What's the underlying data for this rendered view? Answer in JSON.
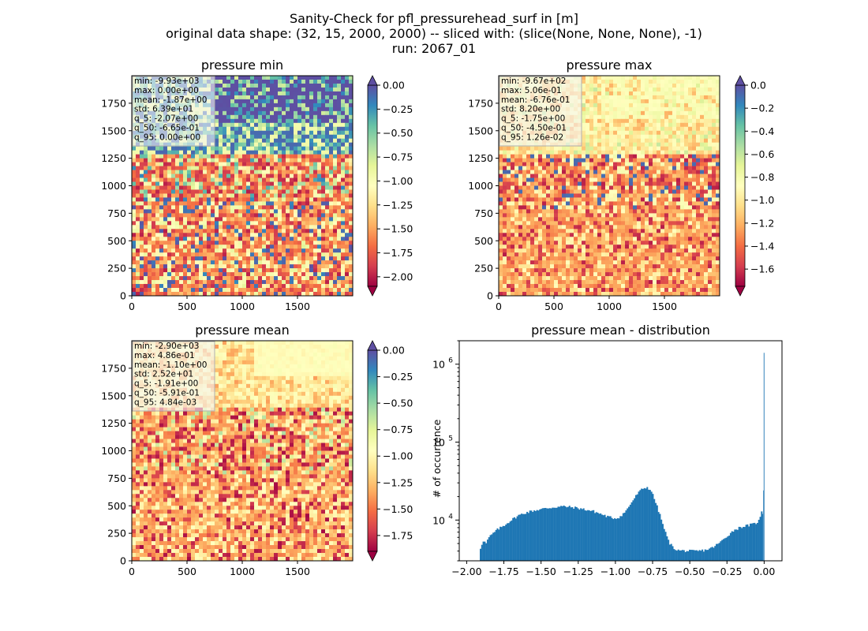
{
  "figure": {
    "title_lines": [
      "Sanity-Check for pfl_pressurehead_surf in [m]",
      "original data shape: (32, 15, 2000, 2000) -- sliced with: (slice(None, None, None), -1)",
      "run: 2067_01"
    ]
  },
  "colormap": {
    "name": "Spectral",
    "stops": [
      "#9e0142",
      "#d53e4f",
      "#f46d43",
      "#fdae61",
      "#fee08b",
      "#ffffbf",
      "#e6f598",
      "#abdda4",
      "#66c2a5",
      "#3288bd",
      "#5e4fa2"
    ]
  },
  "chart_data": [
    {
      "type": "heatmap",
      "title": "pressure min",
      "xlim": [
        0,
        2000
      ],
      "ylim": [
        0,
        2000
      ],
      "xticks": [
        0,
        500,
        1000,
        1500
      ],
      "yticks": [
        0,
        250,
        500,
        750,
        1000,
        1250,
        1500,
        1750
      ],
      "colorbar": {
        "range": [
          -2.1,
          0.0
        ],
        "ticks": [
          "0.00",
          "-0.25",
          "-0.50",
          "-0.75",
          "-1.00",
          "-1.25",
          "-1.50",
          "-1.75",
          "-2.00"
        ],
        "tick_values": [
          0.0,
          -0.25,
          -0.5,
          -0.75,
          -1.0,
          -1.25,
          -1.5,
          -1.75,
          -2.0
        ],
        "extend": "both"
      },
      "stats": [
        "min: -9.93e+03",
        "max: 0.00e+00",
        "mean: -1.87e+00",
        "std: 6.39e+01",
        "q_5: -2.07e+00",
        "q_50: -6.65e-01",
        "q_95: 0.00e+00"
      ]
    },
    {
      "type": "heatmap",
      "title": "pressure max",
      "xlim": [
        0,
        2000
      ],
      "ylim": [
        0,
        2000
      ],
      "xticks": [
        0,
        500,
        1000,
        1500
      ],
      "yticks": [
        0,
        250,
        500,
        750,
        1000,
        1250,
        1500,
        1750
      ],
      "colorbar": {
        "range": [
          -1.75,
          0.0
        ],
        "ticks": [
          "0.0",
          "-0.2",
          "-0.4",
          "-0.6",
          "-0.8",
          "-1.0",
          "-1.2",
          "-1.4",
          "-1.6"
        ],
        "tick_values": [
          0.0,
          -0.2,
          -0.4,
          -0.6,
          -0.8,
          -1.0,
          -1.2,
          -1.4,
          -1.6
        ],
        "extend": "both"
      },
      "stats": [
        "min: -9.67e+02",
        "max: 5.06e-01",
        "mean: -6.76e-01",
        "std: 8.20e+00",
        "q_5: -1.75e+00",
        "q_50: -4.50e-01",
        "q_95: 1.26e-02"
      ]
    },
    {
      "type": "heatmap",
      "title": "pressure mean",
      "xlim": [
        0,
        2000
      ],
      "ylim": [
        0,
        2000
      ],
      "xticks": [
        0,
        500,
        1000,
        1500
      ],
      "yticks": [
        0,
        250,
        500,
        750,
        1000,
        1250,
        1500,
        1750
      ],
      "colorbar": {
        "range": [
          -1.9,
          0.0
        ],
        "ticks": [
          "0.00",
          "-0.25",
          "-0.50",
          "-0.75",
          "-1.00",
          "-1.25",
          "-1.50",
          "-1.75"
        ],
        "tick_values": [
          0.0,
          -0.25,
          -0.5,
          -0.75,
          -1.0,
          -1.25,
          -1.5,
          -1.75
        ],
        "extend": "both"
      },
      "stats": [
        "min: -2.90e+03",
        "max: 4.86e-01",
        "mean: -1.10e+00",
        "std: 2.52e+01",
        "q_5: -1.91e+00",
        "q_50: -5.91e-01",
        "q_95: 4.84e-03"
      ]
    },
    {
      "type": "bar",
      "title": "pressure mean - distribution",
      "ylabel": "# of occurrence",
      "xlim": [
        -2.05,
        0.12
      ],
      "yscale": "log",
      "ylim": [
        3000,
        2000000
      ],
      "bar_color": "#1f77b4",
      "xticks": [
        -2.0,
        -1.75,
        -1.5,
        -1.25,
        -1.0,
        -0.75,
        -0.5,
        -0.25,
        0.0
      ],
      "xtick_labels": [
        "−2.00",
        "−1.75",
        "−1.50",
        "−1.25",
        "−1.00",
        "−0.75",
        "−0.50",
        "−0.25",
        "0.00"
      ],
      "yticks_major": [
        10000,
        100000,
        1000000
      ],
      "ytick_labels": [
        {
          "base": "10",
          "exp": "4"
        },
        {
          "base": "10",
          "exp": "5"
        },
        {
          "base": "10",
          "exp": "6"
        }
      ],
      "hist_profile": [
        [
          -1.91,
          4200
        ],
        [
          -1.89,
          5500
        ],
        [
          -1.87,
          5000
        ],
        [
          -1.85,
          6000
        ],
        [
          -1.82,
          6800
        ],
        [
          -1.8,
          7400
        ],
        [
          -1.75,
          8500
        ],
        [
          -1.7,
          10000
        ],
        [
          -1.65,
          11500
        ],
        [
          -1.6,
          12500
        ],
        [
          -1.55,
          13200
        ],
        [
          -1.5,
          13800
        ],
        [
          -1.45,
          14300
        ],
        [
          -1.4,
          14700
        ],
        [
          -1.35,
          15000
        ],
        [
          -1.32,
          14800
        ],
        [
          -1.28,
          14500
        ],
        [
          -1.25,
          14200
        ],
        [
          -1.2,
          13600
        ],
        [
          -1.15,
          13000
        ],
        [
          -1.1,
          12000
        ],
        [
          -1.05,
          11000
        ],
        [
          -1.0,
          10500
        ],
        [
          -0.97,
          11000
        ],
        [
          -0.93,
          13000
        ],
        [
          -0.89,
          17000
        ],
        [
          -0.85,
          22000
        ],
        [
          -0.82,
          25000
        ],
        [
          -0.79,
          26500
        ],
        [
          -0.76,
          24000
        ],
        [
          -0.73,
          17000
        ],
        [
          -0.7,
          11500
        ],
        [
          -0.67,
          7500
        ],
        [
          -0.64,
          5200
        ],
        [
          -0.61,
          4400
        ],
        [
          -0.58,
          4100
        ],
        [
          -0.55,
          4050
        ],
        [
          -0.5,
          4000
        ],
        [
          -0.45,
          4000
        ],
        [
          -0.4,
          4100
        ],
        [
          -0.35,
          4400
        ],
        [
          -0.3,
          5100
        ],
        [
          -0.25,
          6200
        ],
        [
          -0.2,
          7500
        ],
        [
          -0.15,
          8200
        ],
        [
          -0.1,
          8600
        ],
        [
          -0.06,
          9000
        ],
        [
          -0.03,
          10000
        ],
        [
          -0.01,
          15000
        ],
        [
          0.0,
          1400000
        ]
      ]
    }
  ]
}
